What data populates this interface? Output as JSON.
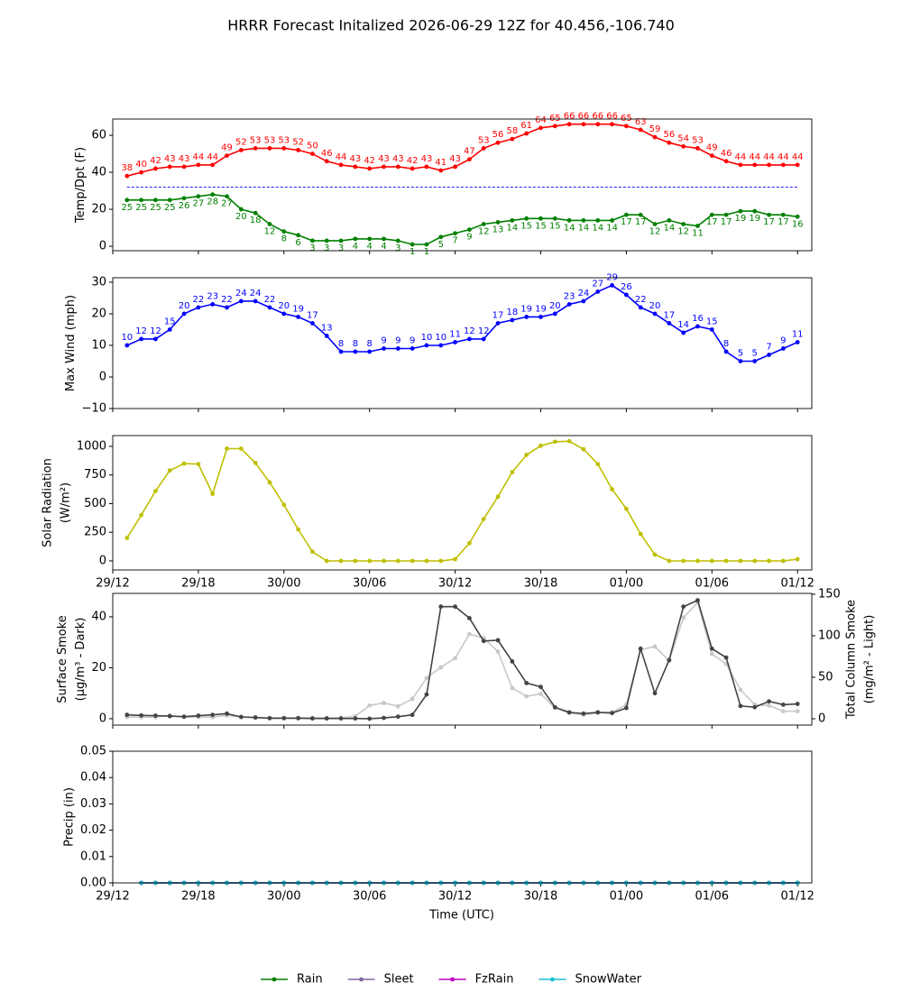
{
  "chart_data": {
    "type": "line",
    "title": "HRRR Forecast Initalized 2026-06-29 12Z for 40.456,-106.740",
    "xlabel": "Time (UTC)",
    "x": [
      "29/13",
      "29/14",
      "29/15",
      "29/16",
      "29/17",
      "29/18",
      "29/19",
      "29/20",
      "29/21",
      "29/22",
      "29/23",
      "30/00",
      "30/01",
      "30/02",
      "30/03",
      "30/04",
      "30/05",
      "30/06",
      "30/07",
      "30/08",
      "30/09",
      "30/10",
      "30/11",
      "30/12",
      "30/13",
      "30/14",
      "30/15",
      "30/16",
      "30/17",
      "30/18",
      "30/19",
      "30/20",
      "30/21",
      "30/22",
      "30/23",
      "01/00",
      "01/01",
      "01/02",
      "01/03",
      "01/04",
      "01/05",
      "01/06",
      "01/07",
      "01/08",
      "01/09",
      "01/10",
      "01/11",
      "01/12"
    ],
    "xlim": [
      "29/12",
      "01/13"
    ],
    "xticks": [
      "29/12",
      "29/18",
      "30/00",
      "30/06",
      "30/12",
      "30/18",
      "01/00",
      "01/06",
      "01/12"
    ],
    "panels": [
      {
        "ylabel": [
          "Temp/Dpt (F)"
        ],
        "ylim": [
          -2.4,
          68.8
        ],
        "yticks": [
          0,
          20,
          40,
          60
        ],
        "show_xtick_labels": false,
        "hline": {
          "value": 32,
          "color": "#0000ff",
          "style": "dashed"
        },
        "series": [
          {
            "color": "#ff0000",
            "data_labels": "above",
            "values": [
              38,
              40,
              42,
              43,
              43,
              44,
              44,
              49,
              52,
              53,
              53,
              53,
              52,
              50,
              46,
              44,
              43,
              42,
              43,
              43,
              42,
              43,
              41,
              43,
              47,
              53,
              56,
              58,
              61,
              64,
              65,
              66,
              66,
              66,
              66,
              65,
              63,
              59,
              56,
              54,
              53,
              49,
              46,
              44,
              44,
              44,
              44,
              44
            ]
          },
          {
            "color": "#008000",
            "data_labels": "below",
            "values": [
              25,
              25,
              25,
              25,
              26,
              27,
              28,
              27,
              20,
              18,
              12,
              8,
              6,
              3,
              3,
              3,
              4,
              4,
              4,
              3,
              1,
              1,
              5,
              7,
              9,
              12,
              13,
              14,
              15,
              15,
              15,
              14,
              14,
              14,
              14,
              17,
              17,
              12,
              14,
              12,
              11,
              17,
              17,
              19,
              19,
              17,
              17,
              16
            ]
          }
        ]
      },
      {
        "ylabel": [
          "Max Wind (mph)"
        ],
        "ylim": [
          -10,
          31.4
        ],
        "yticks": [
          {
            "value": -10,
            "label": "−10"
          },
          0,
          10,
          20,
          30
        ],
        "show_xtick_labels": false,
        "series": [
          {
            "color": "#0000ff",
            "data_labels": "above",
            "values": [
              10,
              12,
              12,
              15,
              20,
              22,
              23,
              22,
              24,
              24,
              22,
              20,
              19,
              17,
              13,
              8,
              8,
              8,
              9,
              9,
              9,
              10,
              10,
              11,
              12,
              12,
              17,
              18,
              19,
              19,
              20,
              23,
              24,
              27,
              29,
              26,
              22,
              20,
              17,
              14,
              16,
              15,
              8,
              5,
              5,
              7,
              9,
              11
            ]
          }
        ]
      },
      {
        "ylabel": [
          "Solar Radiation",
          "(W/m²)"
        ],
        "ylim": [
          -79,
          1094
        ],
        "yticks": [
          0,
          250,
          500,
          750,
          1000
        ],
        "show_xtick_labels": true,
        "series": [
          {
            "color": "#bfbf00",
            "values": [
              200,
              400,
              610,
              790,
              850,
              845,
              585,
              980,
              980,
              855,
              685,
              490,
              275,
              80,
              0,
              0,
              0,
              0,
              0,
              0,
              0,
              0,
              0,
              15,
              155,
              365,
              560,
              775,
              925,
              1005,
              1040,
              1045,
              975,
              845,
              625,
              455,
              235,
              55,
              0,
              0,
              0,
              0,
              0,
              0,
              0,
              0,
              0,
              15
            ]
          }
        ]
      },
      {
        "ylabel": [
          "Surface Smoke",
          "(μg/m³ - Dark)"
        ],
        "ylim": [
          -2.5,
          49.2
        ],
        "yticks": [
          0,
          20,
          40
        ],
        "y2label": [
          "Total Column Smoke",
          "(mg/m² - Light)"
        ],
        "y2lim": [
          -7.6,
          151
        ],
        "y2ticks": [
          0,
          50,
          100,
          150
        ],
        "show_xtick_labels": false,
        "series": [
          {
            "color": "#c8c8c8",
            "axis": "y2",
            "values": [
              2,
              2,
              2,
              4,
              2,
              2,
              2,
              4,
              2,
              1,
              1,
              1,
              1,
              1,
              1,
              1,
              3,
              16,
              19,
              15,
              24,
              49,
              62,
              73,
              102,
              97,
              81,
              37,
              27,
              30,
              13,
              7,
              5,
              7,
              8,
              17,
              83,
              87,
              70,
              122,
              140,
              78,
              66,
              35,
              17,
              16,
              9,
              9
            ]
          },
          {
            "color": "#444444",
            "values": [
              1.5,
              1.3,
              1.2,
              1.0,
              0.8,
              1.2,
              1.5,
              2.0,
              0.7,
              0.5,
              0.2,
              0.2,
              0.2,
              0.1,
              0.1,
              0.1,
              0.1,
              0.0,
              0.3,
              0.8,
              1.5,
              9.5,
              44,
              44,
              39.5,
              30.5,
              30.8,
              22.5,
              14,
              12.5,
              4.5,
              2.5,
              2.0,
              2.5,
              2.2,
              4.2,
              27.5,
              10,
              23,
              44,
              46.5,
              27.5,
              24,
              5,
              4.5,
              6.8,
              5.5,
              5.8
            ]
          }
        ]
      },
      {
        "ylabel": [
          "Precip (in)"
        ],
        "ylim": [
          0,
          0.05
        ],
        "yticks": [
          {
            "value": 0,
            "label": "0.00"
          },
          {
            "value": 0.01,
            "label": "0.01"
          },
          {
            "value": 0.02,
            "label": "0.02"
          },
          {
            "value": 0.03,
            "label": "0.03"
          },
          {
            "value": 0.04,
            "label": "0.04"
          },
          {
            "value": 0.05,
            "label": "0.05"
          }
        ],
        "show_xtick_labels": true,
        "legend": "bottom",
        "x": [
          "29/14",
          "29/15",
          "29/16",
          "29/17",
          "29/18",
          "29/19",
          "29/20",
          "29/21",
          "29/22",
          "29/23",
          "30/00",
          "30/01",
          "30/02",
          "30/03",
          "30/04",
          "30/05",
          "30/06",
          "30/07",
          "30/08",
          "30/09",
          "30/10",
          "30/11",
          "30/12",
          "30/13",
          "30/14",
          "30/15",
          "30/16",
          "30/17",
          "30/18",
          "30/19",
          "30/20",
          "30/21",
          "30/22",
          "30/23",
          "01/00",
          "01/01",
          "01/02",
          "01/03",
          "01/04",
          "01/05",
          "01/06",
          "01/07",
          "01/08",
          "01/09",
          "01/10",
          "01/11",
          "01/12"
        ],
        "series": [
          {
            "name": "Rain",
            "color": "#008000",
            "values": [
              0,
              0,
              0,
              0,
              0,
              0,
              0,
              0,
              0,
              0,
              0,
              0,
              0,
              0,
              0,
              0,
              0,
              0,
              0,
              0,
              0,
              0,
              0,
              0,
              0,
              0,
              0,
              0,
              0,
              0,
              0,
              0,
              0,
              0,
              0,
              0,
              0,
              0,
              0,
              0,
              0,
              0,
              0,
              0,
              0,
              0,
              0
            ]
          },
          {
            "name": "Sleet",
            "color": "#8068a0",
            "values": [
              0,
              0,
              0,
              0,
              0,
              0,
              0,
              0,
              0,
              0,
              0,
              0,
              0,
              0,
              0,
              0,
              0,
              0,
              0,
              0,
              0,
              0,
              0,
              0,
              0,
              0,
              0,
              0,
              0,
              0,
              0,
              0,
              0,
              0,
              0,
              0,
              0,
              0,
              0,
              0,
              0,
              0,
              0,
              0,
              0,
              0,
              0
            ]
          },
          {
            "name": "FzRain",
            "color": "#bf00bf",
            "values": [
              0,
              0,
              0,
              0,
              0,
              0,
              0,
              0,
              0,
              0,
              0,
              0,
              0,
              0,
              0,
              0,
              0,
              0,
              0,
              0,
              0,
              0,
              0,
              0,
              0,
              0,
              0,
              0,
              0,
              0,
              0,
              0,
              0,
              0,
              0,
              0,
              0,
              0,
              0,
              0,
              0,
              0,
              0,
              0,
              0,
              0,
              0
            ]
          },
          {
            "name": "SnowWater",
            "color": "#17becf",
            "values": [
              0,
              0,
              0,
              0,
              0,
              0,
              0,
              0,
              0,
              0,
              0,
              0,
              0,
              0,
              0,
              0,
              0,
              0,
              0,
              0,
              0,
              0,
              0,
              0,
              0,
              0,
              0,
              0,
              0,
              0,
              0,
              0,
              0,
              0,
              0,
              0,
              0,
              0,
              0,
              0,
              0,
              0,
              0,
              0,
              0,
              0,
              0
            ]
          }
        ]
      }
    ]
  }
}
